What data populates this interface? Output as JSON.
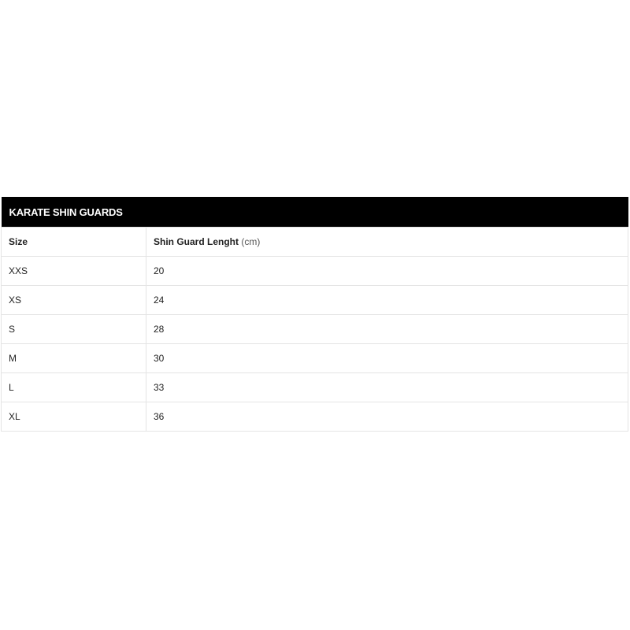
{
  "table": {
    "title": "KARATE SHIN GUARDS",
    "headers": {
      "size": "Size",
      "length": "Shin Guard Lenght",
      "unit": "(cm)"
    },
    "rows": [
      {
        "size": "XXS",
        "length": "20"
      },
      {
        "size": "XS",
        "length": "24"
      },
      {
        "size": "S",
        "length": "28"
      },
      {
        "size": "M",
        "length": "30"
      },
      {
        "size": "L",
        "length": "33"
      },
      {
        "size": "XL",
        "length": "36"
      }
    ]
  }
}
